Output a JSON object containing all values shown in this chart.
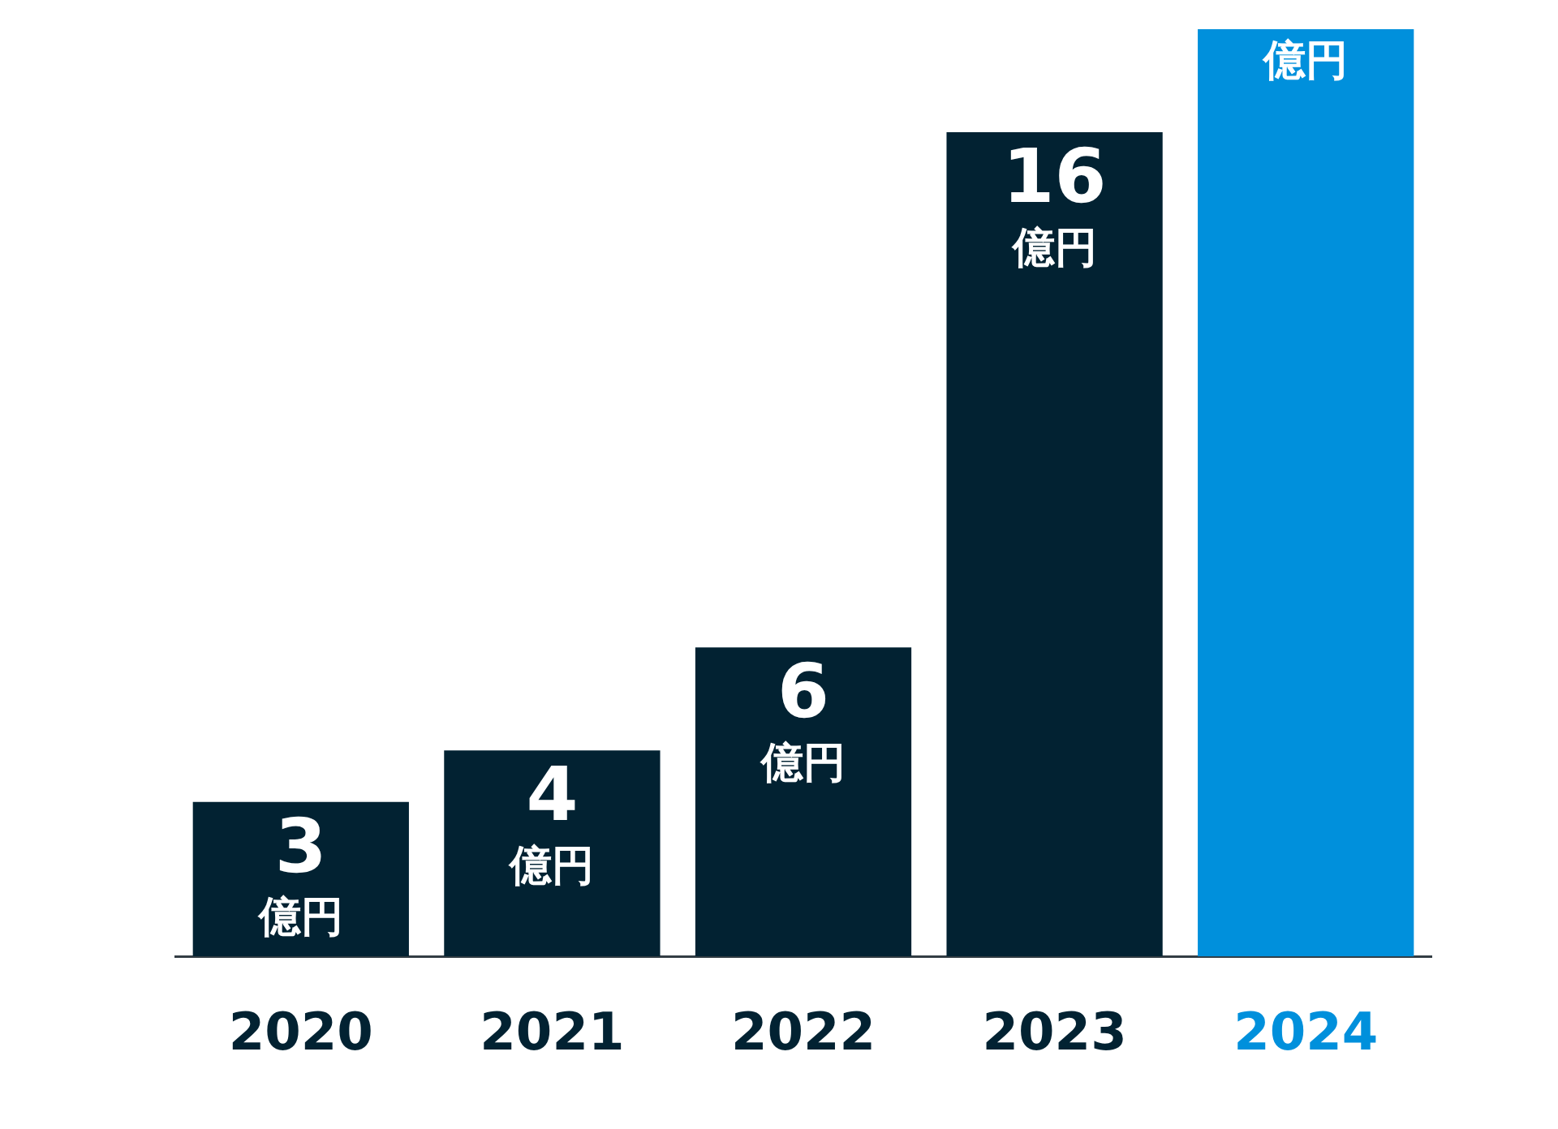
{
  "chart_data": {
    "type": "bar",
    "categories": [
      "2020",
      "2021",
      "2022",
      "2023",
      "2024"
    ],
    "values": [
      3,
      4,
      6,
      16,
      18
    ],
    "colors": [
      "#022232",
      "#022232",
      "#022232",
      "#022232",
      "#0090dc"
    ],
    "value_labels": [
      "3\n億円",
      "4\n億円",
      "6\n億円",
      "16\n億円",
      "億円"
    ],
    "ylim": [
      0,
      18
    ],
    "tick_labels": "x",
    "grid": false,
    "legend": false
  }
}
